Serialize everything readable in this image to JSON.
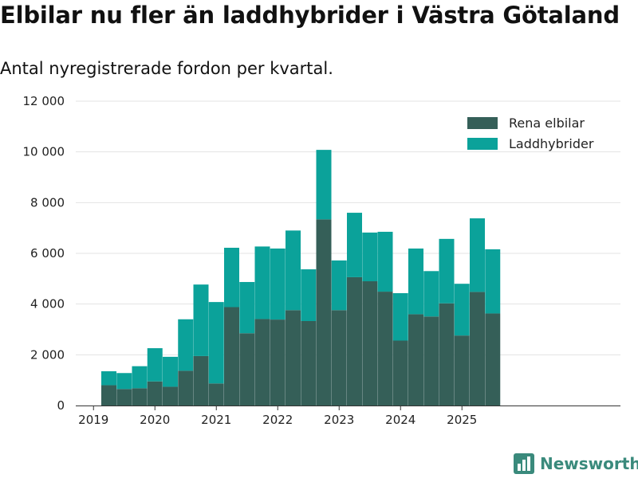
{
  "header": {
    "title": "Elbilar nu fler än laddhybrider i Västra Götaland",
    "subtitle": "Antal nyregistrerade fordon per kvartal."
  },
  "branding": {
    "name": "Newsworthy",
    "icon": "bar-chart-icon",
    "color": "#3a8a7c"
  },
  "chart_data": {
    "type": "bar",
    "stacked": true,
    "categories": [
      "2019Q2",
      "2019Q3",
      "2019Q4",
      "2020Q1",
      "2020Q2",
      "2020Q3",
      "2020Q4",
      "2021Q1",
      "2021Q2",
      "2021Q3",
      "2021Q4",
      "2022Q1",
      "2022Q2",
      "2022Q3",
      "2022Q4",
      "2023Q1",
      "2023Q2",
      "2023Q3",
      "2023Q4",
      "2024Q1",
      "2024Q2",
      "2024Q3",
      "2024Q4",
      "2025Q1",
      "2025Q2",
      "2025Q3"
    ],
    "series": [
      {
        "name": "Rena elbilar",
        "color": "#355f58",
        "values": [
          800,
          650,
          680,
          950,
          740,
          1370,
          1950,
          870,
          3880,
          2850,
          3410,
          3390,
          3760,
          3330,
          7340,
          3760,
          5060,
          4900,
          4490,
          2560,
          3600,
          3510,
          4030,
          2760,
          4480,
          3630
        ]
      },
      {
        "name": "Laddhybrider",
        "color": "#0ba29a",
        "values": [
          550,
          630,
          870,
          1310,
          1180,
          2030,
          2820,
          3210,
          2340,
          2020,
          2860,
          2800,
          3140,
          2040,
          2740,
          1960,
          2540,
          1920,
          2360,
          1870,
          2590,
          1790,
          2540,
          2040,
          2900,
          2530
        ]
      }
    ],
    "x_ticks": [
      "2019",
      "2020",
      "2021",
      "2022",
      "2023",
      "2024",
      "2025"
    ],
    "y_ticks": [
      "0",
      "2 000",
      "4 000",
      "6 000",
      "8 000",
      "10 000",
      "12 000"
    ],
    "y_tick_values": [
      0,
      2000,
      4000,
      6000,
      8000,
      10000,
      12000
    ],
    "ylim": [
      0,
      12000
    ],
    "xlabel": "",
    "ylabel": "",
    "grid": true,
    "legend_position": "top-right"
  }
}
